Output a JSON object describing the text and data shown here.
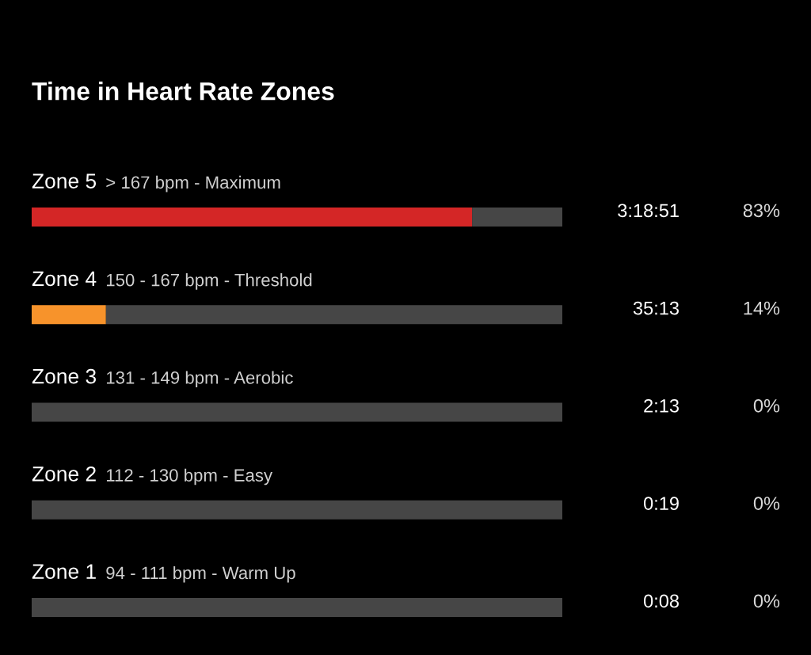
{
  "chart_data": {
    "type": "bar",
    "orientation": "horizontal",
    "stacked": true,
    "title": "Time in Heart Rate Zones",
    "categories": [
      "Zone 5",
      "Zone 4",
      "Zone 3",
      "Zone 2",
      "Zone 1"
    ],
    "series": [
      {
        "colors": [
          "#d42626",
          "#f7932b",
          "#d42626",
          "#d42626",
          "#d42626"
        ],
        "values": [
          83,
          14,
          0,
          0,
          0
        ],
        "value_labels": [
          "83%",
          "14%",
          "0%",
          "0%",
          "0%"
        ]
      },
      {
        "color": "#464646",
        "values": [
          17,
          86,
          100,
          100,
          100
        ]
      }
    ],
    "xlim": [
      0,
      100
    ],
    "annotations": [
      "> 167 bpm - Maximum",
      "150 - 167 bpm - Threshold",
      "131 - 149 bpm - Aerobic",
      "112 - 130 bpm - Easy",
      "94 - 111 bpm - Warm Up",
      "3:18:51",
      "35:13",
      "2:13",
      "0:19",
      "0:08"
    ]
  }
}
